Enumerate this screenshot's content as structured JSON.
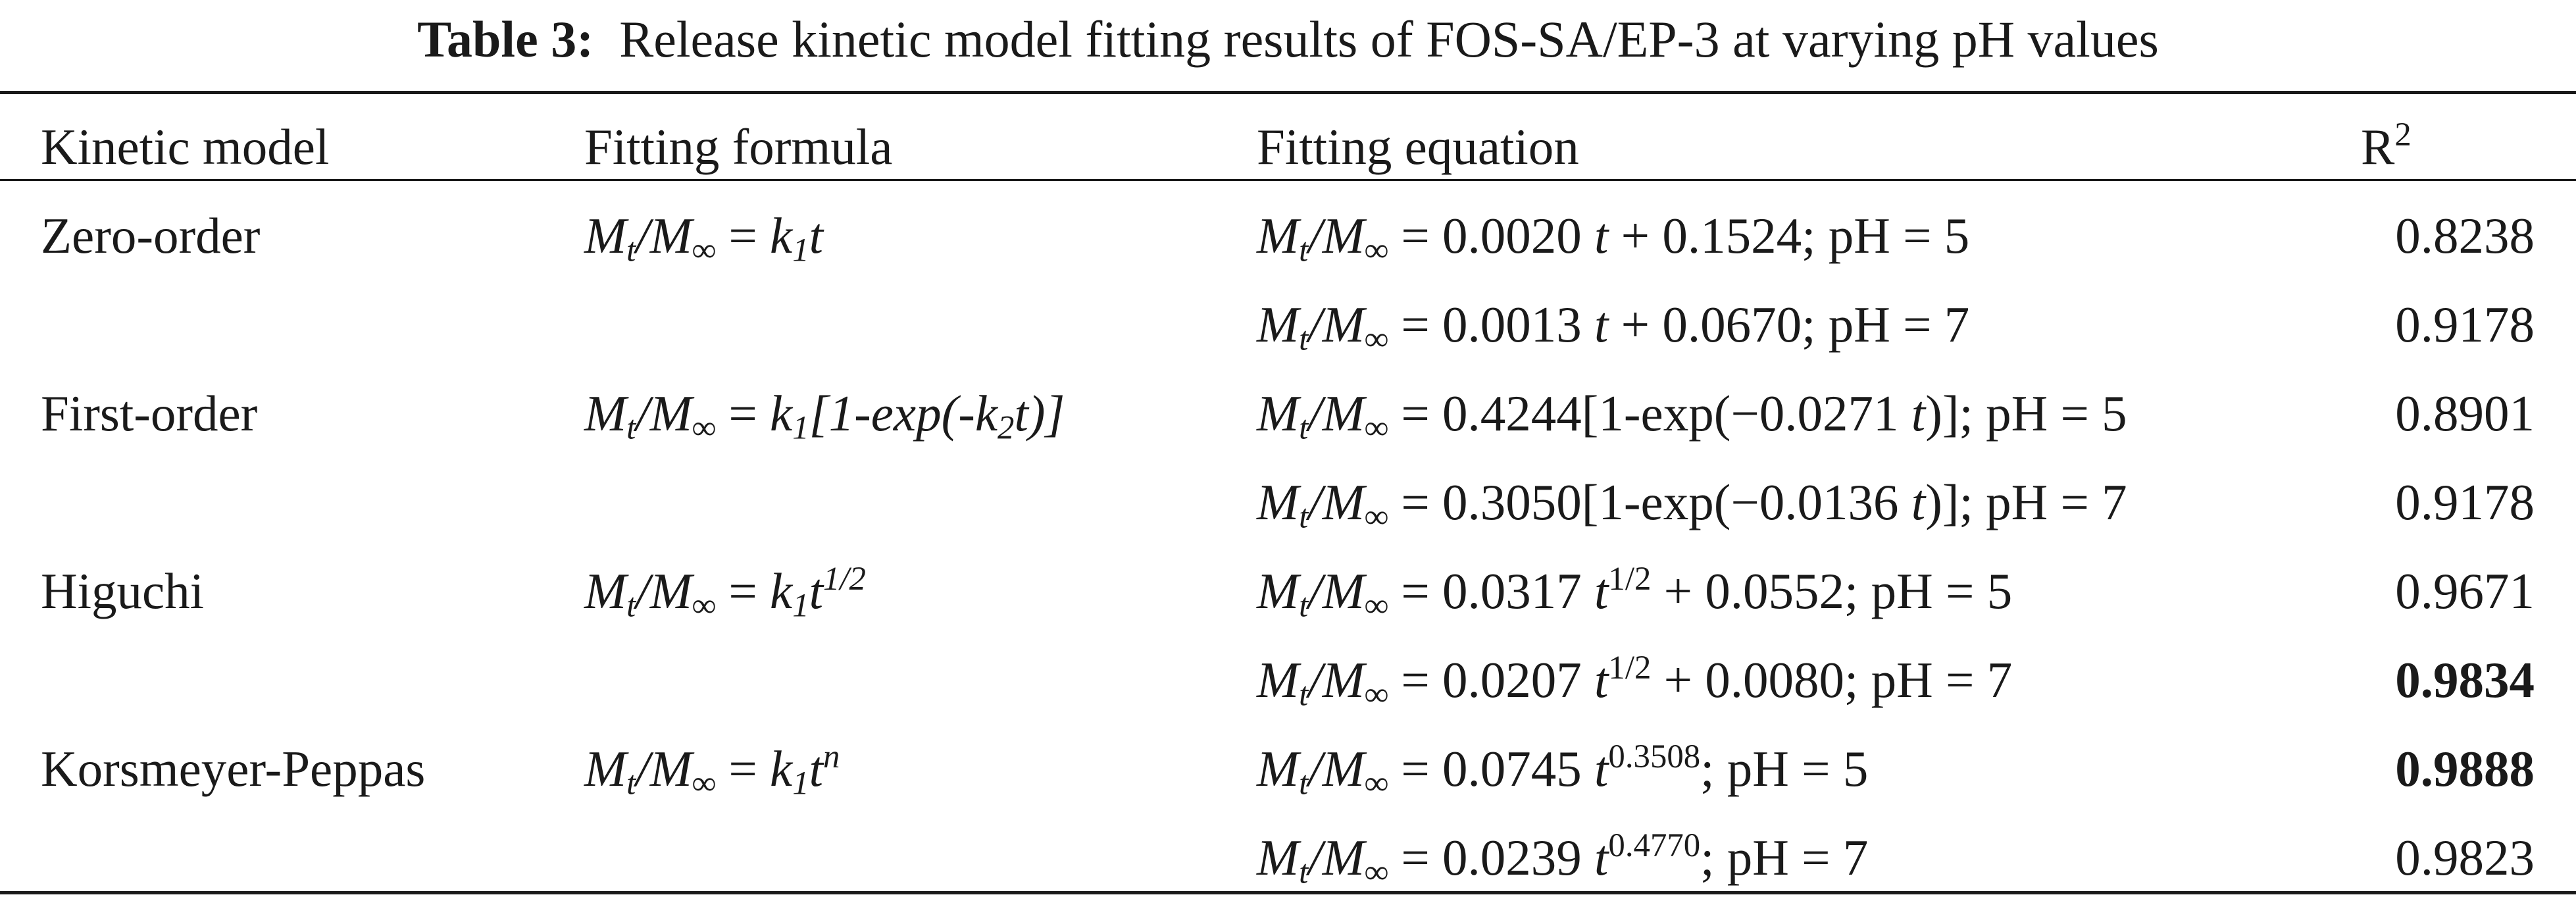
{
  "caption": {
    "label": "Table 3:",
    "text": "Release kinetic model fitting results of FOS-SA/EP-3 at varying pH values"
  },
  "headers": {
    "model": "Kinetic model",
    "formula": "Fitting formula",
    "equation": "Fitting equation",
    "r2_base": "R",
    "r2_sup": "2"
  },
  "sym": {
    "M": "M",
    "t": "t",
    "inf": "∞",
    "k": "k",
    "one": "1",
    "two": "2",
    "slash": "/",
    "eq": " = ",
    "half": "1/2",
    "n": "n"
  },
  "rows": [
    {
      "model": "Zero-order",
      "formula_tail": "",
      "eq_coef": "0.0020",
      "eq_tail": " + 0.1524; pH = 5",
      "r2": "0.8238"
    },
    {
      "model": "",
      "formula_tail": "",
      "eq_coef": "0.0013",
      "eq_tail": " + 0.0670; pH = 7",
      "r2": "0.9178"
    },
    {
      "model": "First-order",
      "formula_mid": "[1-exp(-k",
      "formula_end": "t)]",
      "eq_pre": "0.4244[1-exp(−0.0271 ",
      "eq_tail": ")]; pH = 5",
      "r2": "0.8901"
    },
    {
      "model": "",
      "eq_pre": "0.3050[1-exp(−0.0136 ",
      "eq_tail": ")]; pH = 7",
      "r2": "0.9178"
    },
    {
      "model": "Higuchi",
      "eq_coef": "0.0317",
      "eq_tail": " + 0.0552; pH = 5",
      "r2": "0.9671"
    },
    {
      "model": "",
      "eq_coef": "0.0207",
      "eq_tail": " + 0.0080; pH = 7",
      "r2": "0.9834"
    },
    {
      "model": "Korsmeyer-Peppas",
      "eq_coef": "0.0745",
      "eq_exp": "0.3508",
      "eq_tail": "; pH = 5",
      "r2": "0.9888"
    },
    {
      "model": "",
      "eq_coef": "0.0239",
      "eq_exp": "0.4770",
      "eq_tail": "; pH = 7",
      "r2": "0.9823"
    }
  ]
}
